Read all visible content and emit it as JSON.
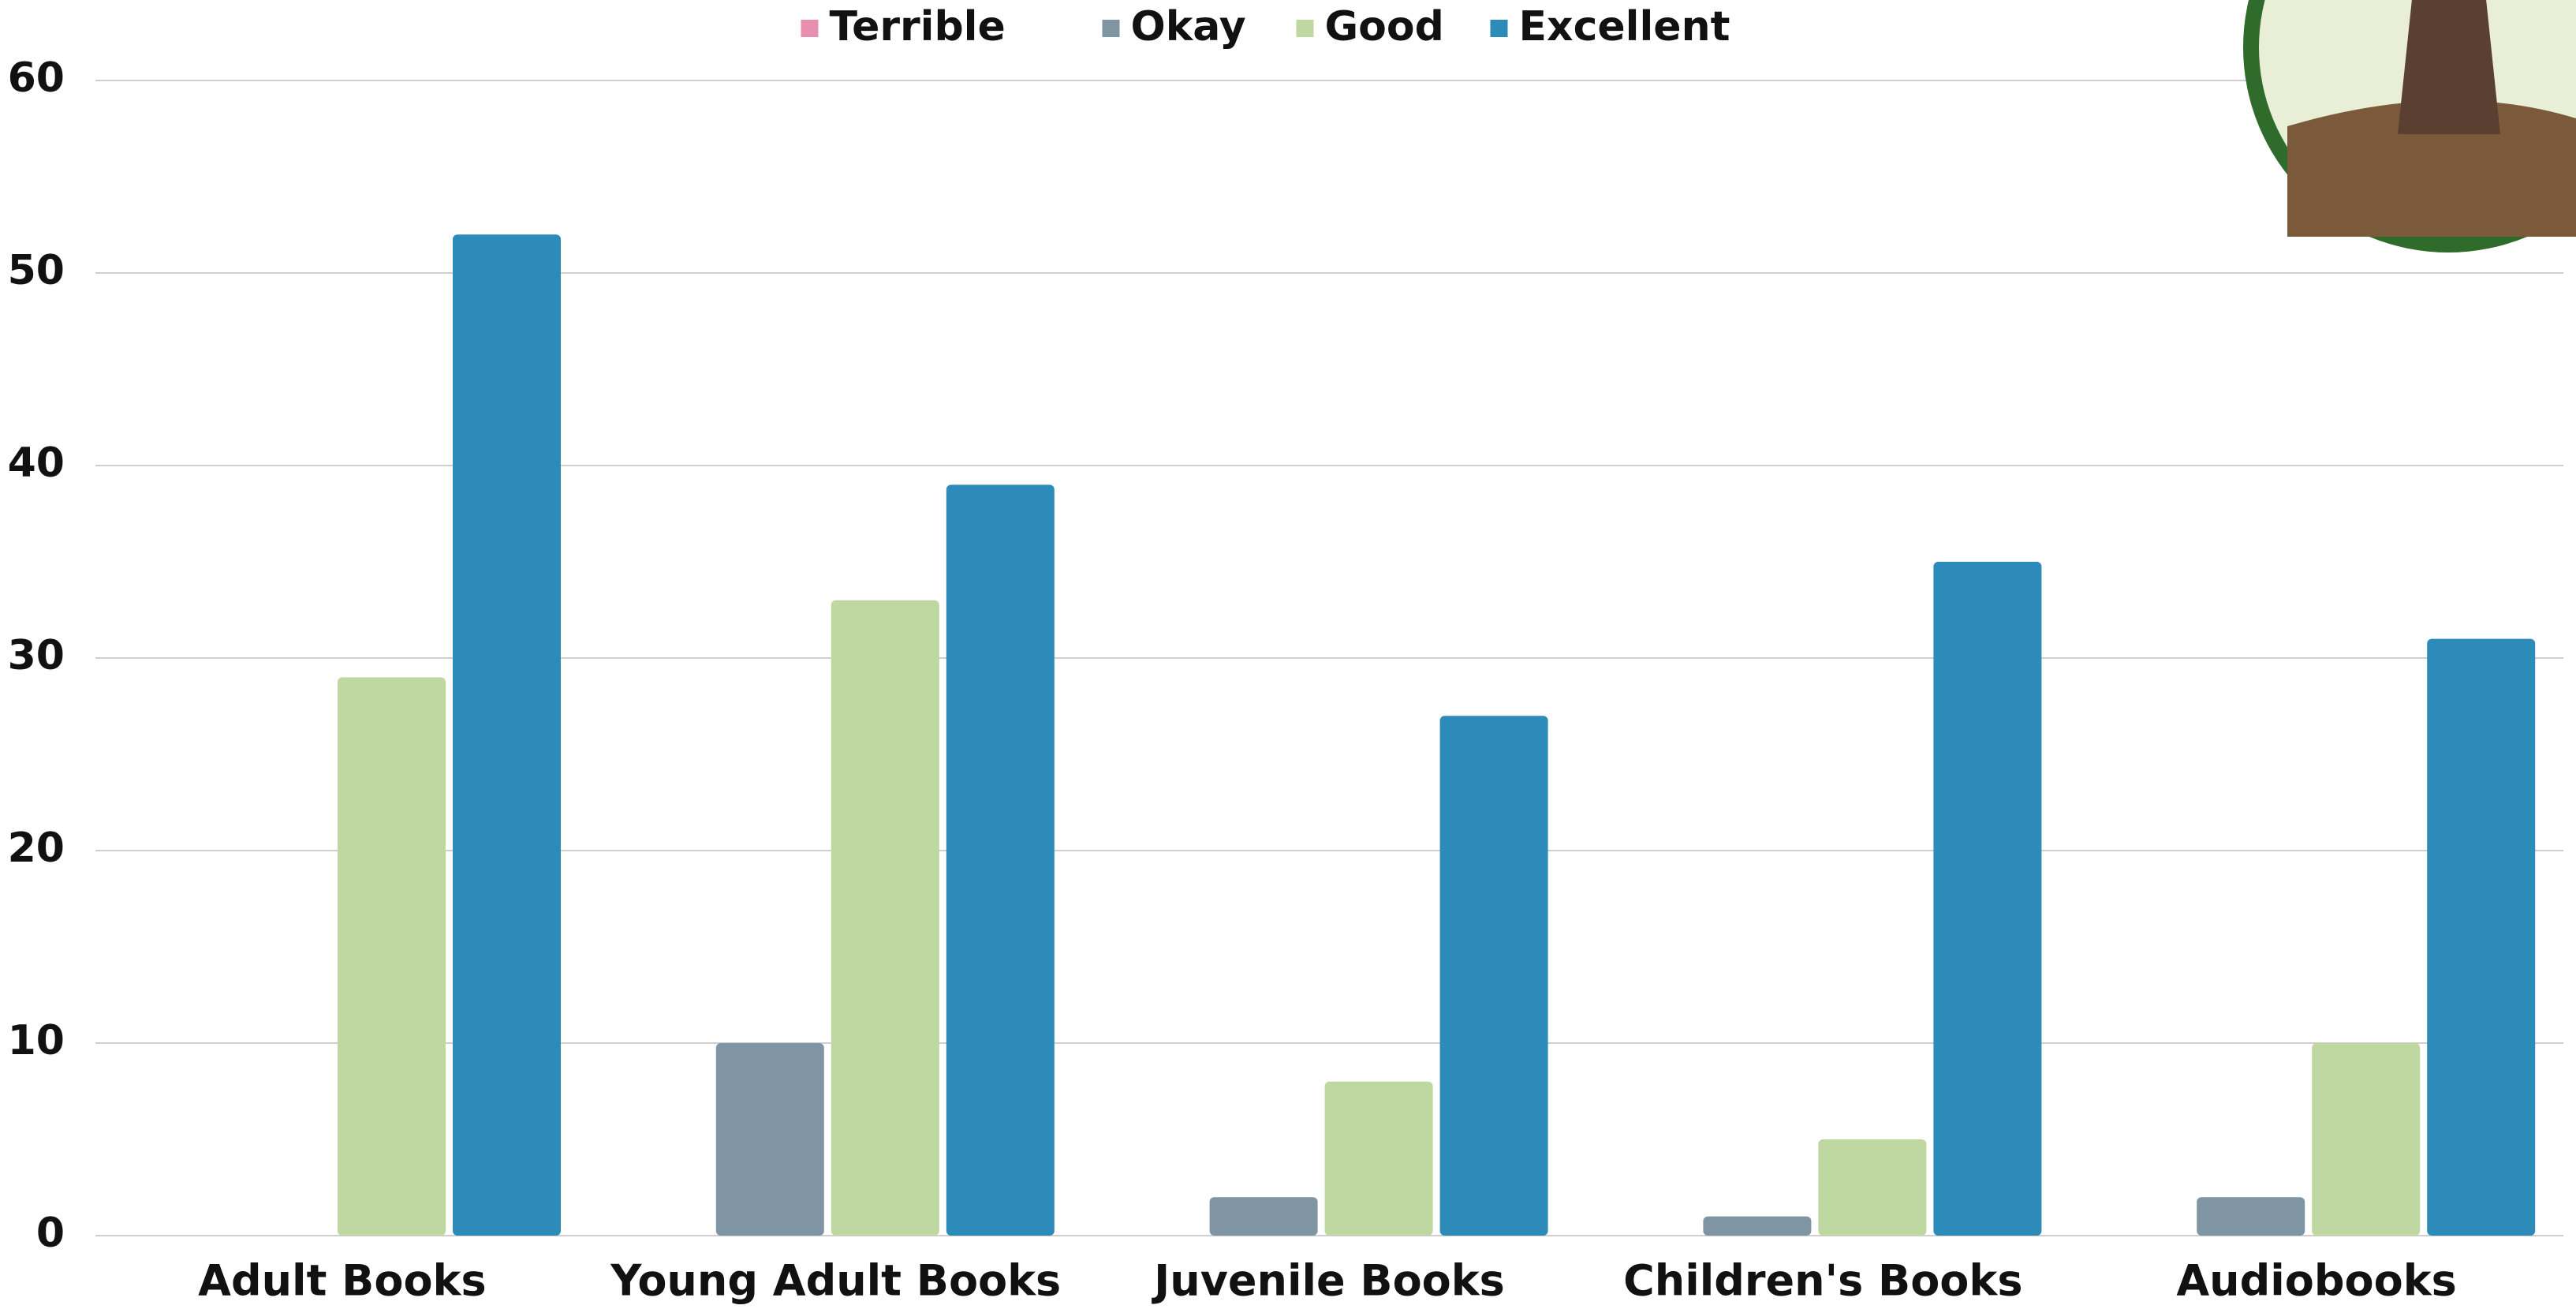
{
  "chart_data": {
    "type": "bar",
    "categories": [
      "Adult Books",
      "Young Adult Books",
      "Juvenile Books",
      "Children's Books",
      "Audiobooks"
    ],
    "series": [
      {
        "name": "Terrible",
        "color": "#e88fb0",
        "values": [
          0,
          0,
          0,
          0,
          0
        ]
      },
      {
        "name": "Okay",
        "color": "#8095a3",
        "values": [
          0,
          10,
          2,
          1,
          2
        ]
      },
      {
        "name": "Good",
        "color": "#bfd7a0",
        "values": [
          29,
          33,
          8,
          5,
          10
        ]
      },
      {
        "name": "Excellent",
        "color": "#2d8bba",
        "values": [
          52,
          39,
          27,
          35,
          31
        ]
      }
    ],
    "ylim": [
      0,
      60
    ],
    "yticks": [
      0,
      10,
      20,
      30,
      40,
      50,
      60
    ],
    "grid": true,
    "legend": "top"
  }
}
